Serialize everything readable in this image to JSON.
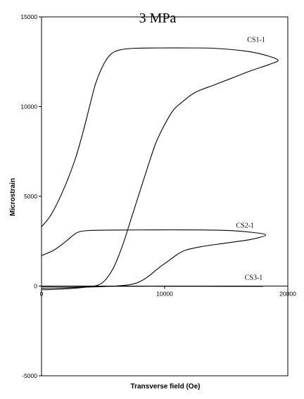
{
  "chart_data": {
    "type": "line",
    "title": "3 MPa",
    "xlabel": "Transverse field (Oe)",
    "ylabel": "Microstrain",
    "xlim": [
      0,
      20000
    ],
    "ylim": [
      -5000,
      15000
    ],
    "x_ticks": [
      0,
      10000,
      20000
    ],
    "y_ticks": [
      -5000,
      0,
      5000,
      10000,
      15000
    ],
    "x_tick_labels": [
      "0",
      "10000",
      "20000"
    ],
    "y_tick_labels": [
      "-5000",
      "0",
      "5000",
      "10000",
      "15000"
    ],
    "grid": false,
    "series": [
      {
        "name": "CS1-1",
        "x": [
          0,
          800,
          1800,
          2700,
          3300,
          3900,
          4400,
          5000,
          5600,
          6300,
          7500,
          9500,
          12000,
          14000,
          16500,
          18000,
          19200,
          18500,
          17000,
          15500,
          14000,
          12500,
          11500,
          10700,
          10000,
          9300,
          8700,
          8000,
          7300,
          6600,
          5900,
          5200,
          4600,
          4000,
          3300,
          2500,
          1500,
          500,
          0
        ],
        "y": [
          3300,
          4000,
          5400,
          7000,
          8400,
          10000,
          11300,
          12300,
          12900,
          13150,
          13250,
          13270,
          13270,
          13250,
          13100,
          12900,
          12600,
          12350,
          12000,
          11600,
          11200,
          10800,
          10300,
          9800,
          9000,
          8000,
          6800,
          5300,
          3800,
          2300,
          1100,
          350,
          60,
          -20,
          -80,
          -130,
          -170,
          -200,
          -200
        ]
      },
      {
        "name": "CS2-1",
        "x": [
          0,
          1000,
          2000,
          2700,
          3200,
          4000,
          6000,
          9000,
          12000,
          15000,
          17000,
          18200,
          17000,
          15000,
          13000,
          11700,
          11000,
          10300,
          9500,
          8700,
          8000,
          7200,
          6000,
          4500,
          3000,
          1500,
          0
        ],
        "y": [
          1700,
          2000,
          2500,
          2900,
          3050,
          3100,
          3120,
          3130,
          3130,
          3100,
          3000,
          2850,
          2600,
          2400,
          2200,
          2000,
          1750,
          1400,
          1000,
          550,
          250,
          80,
          0,
          -40,
          -70,
          -100,
          -120
        ]
      },
      {
        "name": "CS3-1",
        "x": [
          0,
          2000,
          5000,
          9000,
          13000,
          18000
        ],
        "y": [
          -30,
          -20,
          -15,
          -10,
          -15,
          -20
        ]
      }
    ],
    "annotations": [
      {
        "text": "CS1-1",
        "x": 16700,
        "y": 13600
      },
      {
        "text": "CS2-1",
        "x": 15800,
        "y": 3250
      },
      {
        "text": "CS3-1",
        "x": 16500,
        "y": 350
      }
    ]
  }
}
